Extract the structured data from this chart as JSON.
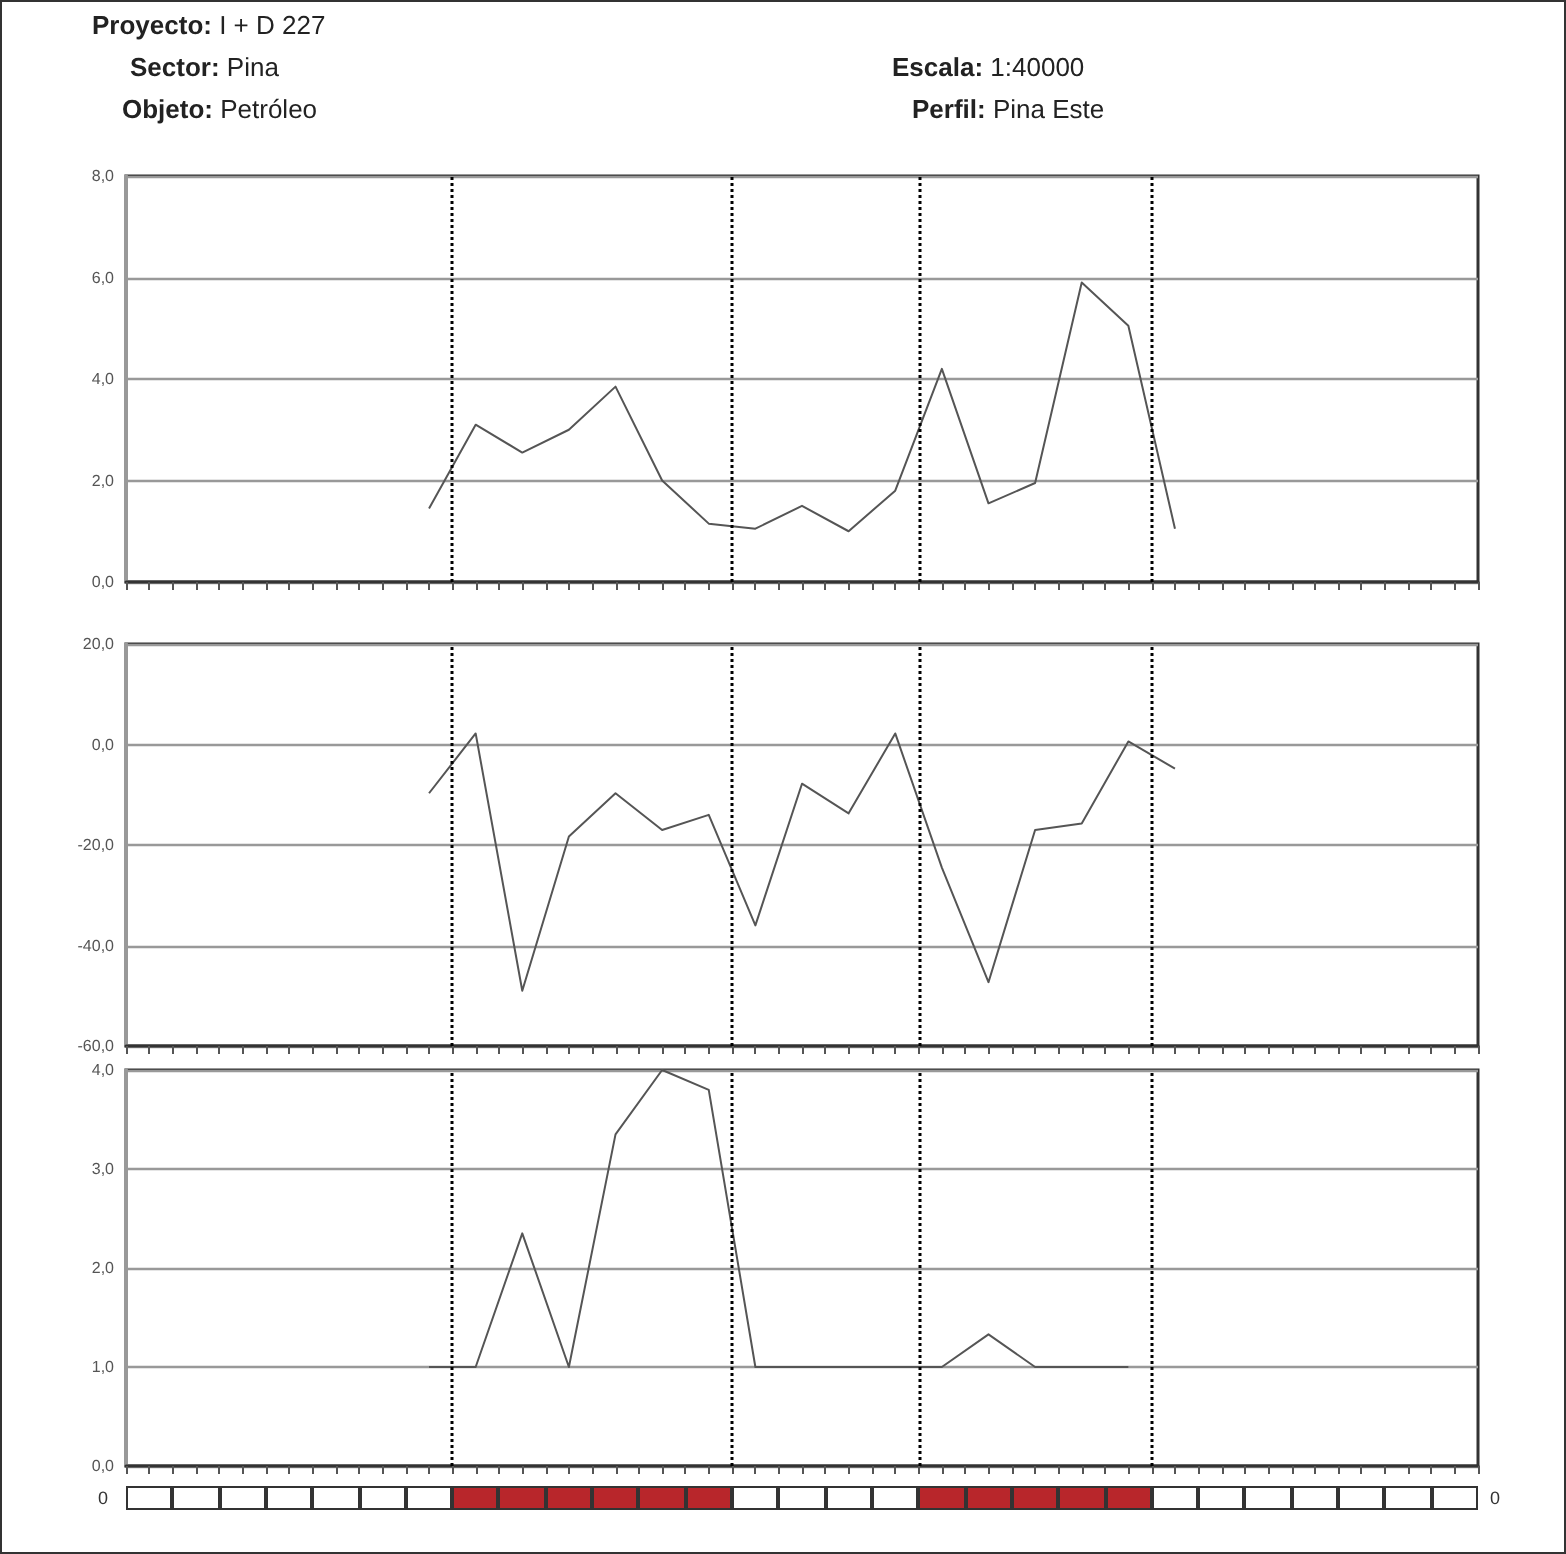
{
  "chart_data": [
    {
      "type": "line",
      "annotations": [
        "Proyecto: I + D 227",
        "Sector: Pina",
        "Objeto: Petróleo",
        "Escala: 1:40000",
        "Perfil: Pina Este"
      ],
      "categories": [
        null,
        null,
        null,
        null,
        null,
        null,
        null,
        null,
        null,
        null,
        null,
        null,
        null,
        null,
        null,
        null,
        null
      ],
      "series": [
        {
          "color": "#555555",
          "values": [
            1.45,
            3.1,
            2.55,
            3.0,
            3.85,
            2.0,
            1.15,
            1.05,
            1.5,
            1.0,
            1.8,
            4.2,
            1.55,
            1.95,
            5.9,
            5.05,
            1.05
          ]
        }
      ],
      "ylim": [
        0,
        8
      ],
      "yticks": [
        {
          "value": 0,
          "label": "0,0"
        },
        {
          "value": 2,
          "label": "2,0"
        },
        {
          "value": 4,
          "label": "4,0"
        },
        {
          "value": 6,
          "label": "6,0"
        },
        {
          "value": 8,
          "label": "8,0"
        }
      ],
      "grid": "y",
      "marker": "none",
      "tick_labels": "y"
    },
    {
      "type": "line",
      "categories": [
        null,
        null,
        null,
        null,
        null,
        null,
        null,
        null,
        null,
        null,
        null,
        null,
        null,
        null,
        null,
        null,
        null
      ],
      "series": [
        {
          "color": "#555555",
          "values": [
            -9.7,
            2.2,
            -49,
            -18.3,
            -9.7,
            -17,
            -14,
            -36,
            -7.8,
            -13.7,
            2.2,
            -24.5,
            -47.3,
            -17,
            -15.7,
            0.6,
            -4.8
          ]
        }
      ],
      "ylim": [
        -60,
        20
      ],
      "yticks": [
        {
          "value": -60,
          "label": "-60,0"
        },
        {
          "value": -40,
          "label": "-40,0"
        },
        {
          "value": -20,
          "label": "-20,0"
        },
        {
          "value": 0,
          "label": "0,0"
        },
        {
          "value": 20,
          "label": "20,0"
        }
      ],
      "grid": "y",
      "marker": "none",
      "tick_labels": "y"
    },
    {
      "type": "line",
      "annotations": [
        "0",
        "0"
      ],
      "categories": [
        null,
        null,
        null,
        null,
        null,
        null,
        null,
        null,
        null,
        null,
        null,
        null,
        null,
        null,
        null,
        null,
        null
      ],
      "series": [
        {
          "color": "#555555",
          "values": [
            1.0,
            1.0,
            2.35,
            1.0,
            3.35,
            4.0,
            3.8,
            1.0,
            1.0,
            1.0,
            1.0,
            1.0,
            1.33,
            1.0,
            1.0,
            1.0,
            null
          ]
        }
      ],
      "ylim": [
        0,
        4
      ],
      "yticks": [
        {
          "value": 0,
          "label": "0,0"
        },
        {
          "value": 1,
          "label": "1,0"
        },
        {
          "value": 2,
          "label": "2,0"
        },
        {
          "value": 3,
          "label": "3,0"
        },
        {
          "value": 4,
          "label": "4,0"
        }
      ],
      "grid": "y",
      "marker": "none",
      "tick_labels": "y"
    }
  ]
}
